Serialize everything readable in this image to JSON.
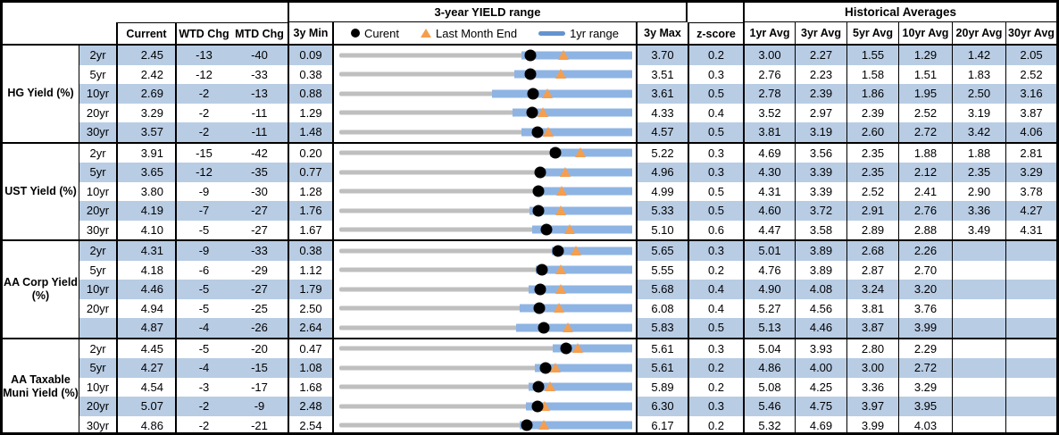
{
  "header": {
    "range_title": "3-year YIELD range",
    "hist_title": "Historical Averages",
    "col_current": "Current",
    "col_wtd": "WTD Chg",
    "col_mtd": "MTD Chg",
    "col_min": "3y Min",
    "col_max": "3y Max",
    "col_z": "z-score",
    "avg_cols": [
      "1yr Avg",
      "3yr Avg",
      "5yr Avg",
      "10yr Avg",
      "20yr Avg",
      "30yr Avg"
    ],
    "legend": {
      "current": "Curent",
      "last_month": "Last Month End",
      "range": "1yr range"
    }
  },
  "colors": {
    "stripe_blue": "#b8cce4",
    "bar_blue": "#8eb4e3",
    "legend_line_blue": "#6394ce",
    "marker_orange": "#f49e4f",
    "track_gray": "#bfbfbf",
    "border_black": "#000000"
  },
  "chart_data": {
    "type": "table",
    "subtype": "range-bullet-rows",
    "title": "3-year YIELD range",
    "legend_entries": [
      "Curent",
      "Last Month End",
      "1yr range"
    ],
    "value_units": "percent yield; WTD/MTD changes in bps",
    "groups": [
      {
        "label": "HG Yield (%)",
        "rows": [
          {
            "tenor": "2yr",
            "current": "2.45",
            "wtd_chg": "-13",
            "mtd_chg": "-40",
            "min_3y": "0.09",
            "max_3y": "3.70",
            "z_score": "0.2",
            "avgs": [
              "3.00",
              "2.27",
              "1.55",
              "1.29",
              "1.42",
              "2.05"
            ],
            "chart": {
              "last_month_end": 2.85,
              "yr1_low": 2.34,
              "yr1_high": 3.7
            }
          },
          {
            "tenor": "5yr",
            "current": "2.42",
            "wtd_chg": "-12",
            "mtd_chg": "-33",
            "min_3y": "0.38",
            "max_3y": "3.51",
            "z_score": "0.3",
            "avgs": [
              "2.76",
              "2.23",
              "1.58",
              "1.51",
              "1.83",
              "2.52"
            ],
            "chart": {
              "last_month_end": 2.75,
              "yr1_low": 2.25,
              "yr1_high": 3.51
            }
          },
          {
            "tenor": "10yr",
            "current": "2.69",
            "wtd_chg": "-2",
            "mtd_chg": "-13",
            "min_3y": "0.88",
            "max_3y": "3.61",
            "z_score": "0.5",
            "avgs": [
              "2.78",
              "2.39",
              "1.86",
              "1.95",
              "2.50",
              "3.16"
            ],
            "chart": {
              "last_month_end": 2.82,
              "yr1_low": 2.3,
              "yr1_high": 3.61
            }
          },
          {
            "tenor": "20yr",
            "current": "3.29",
            "wtd_chg": "-2",
            "mtd_chg": "-11",
            "min_3y": "1.29",
            "max_3y": "4.33",
            "z_score": "0.4",
            "avgs": [
              "3.52",
              "2.97",
              "2.39",
              "2.52",
              "3.19",
              "3.87"
            ],
            "chart": {
              "last_month_end": 3.4,
              "yr1_low": 3.09,
              "yr1_high": 4.33
            }
          },
          {
            "tenor": "30yr",
            "current": "3.57",
            "wtd_chg": "-2",
            "mtd_chg": "-11",
            "min_3y": "1.48",
            "max_3y": "4.57",
            "z_score": "0.5",
            "avgs": [
              "3.81",
              "3.19",
              "2.60",
              "2.72",
              "3.42",
              "4.06"
            ],
            "chart": {
              "last_month_end": 3.68,
              "yr1_low": 3.4,
              "yr1_high": 4.57
            }
          }
        ]
      },
      {
        "label": "UST Yield (%)",
        "rows": [
          {
            "tenor": "2yr",
            "current": "3.91",
            "wtd_chg": "-15",
            "mtd_chg": "-42",
            "min_3y": "0.20",
            "max_3y": "5.22",
            "z_score": "0.3",
            "avgs": [
              "4.69",
              "3.56",
              "2.35",
              "1.88",
              "1.88",
              "2.81"
            ],
            "chart": {
              "last_month_end": 4.33,
              "yr1_low": 3.81,
              "yr1_high": 5.22
            }
          },
          {
            "tenor": "5yr",
            "current": "3.65",
            "wtd_chg": "-12",
            "mtd_chg": "-35",
            "min_3y": "0.77",
            "max_3y": "4.96",
            "z_score": "0.3",
            "avgs": [
              "4.30",
              "3.39",
              "2.35",
              "2.12",
              "2.35",
              "3.29"
            ],
            "chart": {
              "last_month_end": 4.0,
              "yr1_low": 3.6,
              "yr1_high": 4.96
            }
          },
          {
            "tenor": "10yr",
            "current": "3.80",
            "wtd_chg": "-9",
            "mtd_chg": "-30",
            "min_3y": "1.28",
            "max_3y": "4.99",
            "z_score": "0.5",
            "avgs": [
              "4.31",
              "3.39",
              "2.52",
              "2.41",
              "2.90",
              "3.78"
            ],
            "chart": {
              "last_month_end": 4.1,
              "yr1_low": 3.75,
              "yr1_high": 4.99
            }
          },
          {
            "tenor": "20yr",
            "current": "4.19",
            "wtd_chg": "-7",
            "mtd_chg": "-27",
            "min_3y": "1.76",
            "max_3y": "5.33",
            "z_score": "0.5",
            "avgs": [
              "4.60",
              "3.72",
              "2.91",
              "2.76",
              "3.36",
              "4.27"
            ],
            "chart": {
              "last_month_end": 4.46,
              "yr1_low": 4.08,
              "yr1_high": 5.33
            }
          },
          {
            "tenor": "30yr",
            "current": "4.10",
            "wtd_chg": "-5",
            "mtd_chg": "-27",
            "min_3y": "1.67",
            "max_3y": "5.10",
            "z_score": "0.6",
            "avgs": [
              "4.47",
              "3.58",
              "2.89",
              "2.88",
              "3.49",
              "4.31"
            ],
            "chart": {
              "last_month_end": 4.37,
              "yr1_low": 3.93,
              "yr1_high": 5.1
            }
          }
        ]
      },
      {
        "label": "AA Corp Yield (%)",
        "rows": [
          {
            "tenor": "2yr",
            "current": "4.31",
            "wtd_chg": "-9",
            "mtd_chg": "-33",
            "min_3y": "0.38",
            "max_3y": "5.65",
            "z_score": "0.3",
            "avgs": [
              "5.01",
              "3.89",
              "2.68",
              "2.26",
              "",
              ""
            ],
            "chart": {
              "last_month_end": 4.64,
              "yr1_low": 4.2,
              "yr1_high": 5.65
            }
          },
          {
            "tenor": "5yr",
            "current": "4.18",
            "wtd_chg": "-6",
            "mtd_chg": "-29",
            "min_3y": "1.12",
            "max_3y": "5.55",
            "z_score": "0.2",
            "avgs": [
              "4.76",
              "3.89",
              "2.87",
              "2.70",
              "",
              ""
            ],
            "chart": {
              "last_month_end": 4.47,
              "yr1_low": 4.09,
              "yr1_high": 5.55
            }
          },
          {
            "tenor": "10yr",
            "current": "4.46",
            "wtd_chg": "-5",
            "mtd_chg": "-27",
            "min_3y": "1.79",
            "max_3y": "5.68",
            "z_score": "0.4",
            "avgs": [
              "4.90",
              "4.08",
              "3.24",
              "3.20",
              "",
              ""
            ],
            "chart": {
              "last_month_end": 4.73,
              "yr1_low": 4.3,
              "yr1_high": 5.68
            }
          },
          {
            "tenor": "20yr",
            "current": "4.94",
            "wtd_chg": "-5",
            "mtd_chg": "-25",
            "min_3y": "2.50",
            "max_3y": "6.08",
            "z_score": "0.4",
            "avgs": [
              "5.27",
              "4.56",
              "3.81",
              "3.76",
              "",
              ""
            ],
            "chart": {
              "last_month_end": 5.19,
              "yr1_low": 4.71,
              "yr1_high": 6.08
            }
          },
          {
            "tenor": "",
            "current": "4.87",
            "wtd_chg": "-4",
            "mtd_chg": "-26",
            "min_3y": "2.64",
            "max_3y": "5.83",
            "z_score": "0.5",
            "avgs": [
              "5.13",
              "4.46",
              "3.87",
              "3.99",
              "",
              ""
            ],
            "chart": {
              "last_month_end": 5.13,
              "yr1_low": 4.57,
              "yr1_high": 5.83
            }
          }
        ]
      },
      {
        "label": "AA Taxable Muni Yield (%)",
        "rows": [
          {
            "tenor": "2yr",
            "current": "4.45",
            "wtd_chg": "-5",
            "mtd_chg": "-20",
            "min_3y": "0.47",
            "max_3y": "5.61",
            "z_score": "0.3",
            "avgs": [
              "5.04",
              "3.93",
              "2.80",
              "2.29",
              "",
              ""
            ],
            "chart": {
              "last_month_end": 4.65,
              "yr1_low": 4.22,
              "yr1_high": 5.61
            }
          },
          {
            "tenor": "5yr",
            "current": "4.27",
            "wtd_chg": "-4",
            "mtd_chg": "-15",
            "min_3y": "1.08",
            "max_3y": "5.61",
            "z_score": "0.2",
            "avgs": [
              "4.86",
              "4.00",
              "3.00",
              "2.72",
              "",
              ""
            ],
            "chart": {
              "last_month_end": 4.42,
              "yr1_low": 4.1,
              "yr1_high": 5.61
            }
          },
          {
            "tenor": "10yr",
            "current": "4.54",
            "wtd_chg": "-3",
            "mtd_chg": "-17",
            "min_3y": "1.68",
            "max_3y": "5.89",
            "z_score": "0.2",
            "avgs": [
              "5.08",
              "4.25",
              "3.36",
              "3.29",
              "",
              ""
            ],
            "chart": {
              "last_month_end": 4.71,
              "yr1_low": 4.4,
              "yr1_high": 5.89
            }
          },
          {
            "tenor": "20yr",
            "current": "5.07",
            "wtd_chg": "-2",
            "mtd_chg": "-9",
            "min_3y": "2.48",
            "max_3y": "6.30",
            "z_score": "0.3",
            "avgs": [
              "5.46",
              "4.75",
              "3.97",
              "3.95",
              "",
              ""
            ],
            "chart": {
              "last_month_end": 5.16,
              "yr1_low": 4.92,
              "yr1_high": 6.3
            }
          },
          {
            "tenor": "30yr",
            "current": "4.86",
            "wtd_chg": "-2",
            "mtd_chg": "-21",
            "min_3y": "2.54",
            "max_3y": "6.17",
            "z_score": "0.2",
            "avgs": [
              "5.32",
              "4.69",
              "3.99",
              "4.03",
              "",
              ""
            ],
            "chart": {
              "last_month_end": 5.07,
              "yr1_low": 4.78,
              "yr1_high": 6.17
            }
          }
        ]
      }
    ]
  }
}
